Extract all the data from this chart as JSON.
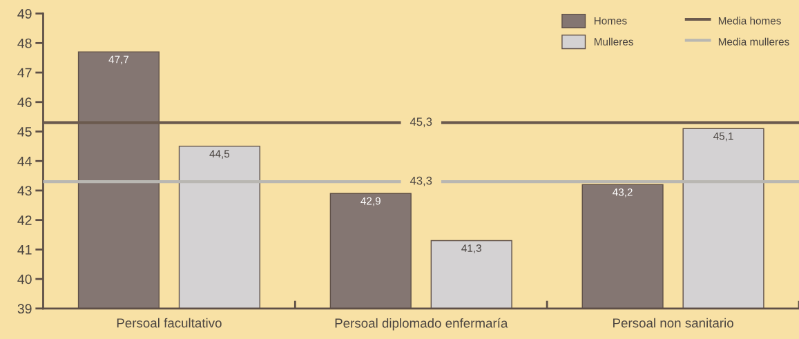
{
  "chart_data": {
    "type": "bar",
    "categories": [
      "Persoal facultativo",
      "Persoal diplomado enfermaría",
      "Persoal non sanitario"
    ],
    "series": [
      {
        "name": "Homes",
        "color": "#847672",
        "values": [
          47.7,
          42.9,
          43.2
        ],
        "value_labels": [
          "47,7",
          "42,9",
          "43,2"
        ]
      },
      {
        "name": "Mulleres",
        "color": "#d4d2d3",
        "values": [
          44.5,
          41.3,
          45.1
        ],
        "value_labels": [
          "44,5",
          "41,3",
          "45,1"
        ]
      }
    ],
    "ylim": [
      39,
      49
    ],
    "yticks": [
      39,
      40,
      41,
      42,
      43,
      44,
      45,
      46,
      47,
      48,
      49
    ],
    "ref_lines": [
      {
        "axis": "y",
        "value": 45.3,
        "label": "Media homes",
        "color": "#6b5a4e",
        "line_style": "solid"
      },
      {
        "axis": "y",
        "value": 43.3,
        "label": "Media mulleres",
        "color": "#b9b7b2",
        "line_style": "solid"
      }
    ],
    "annotations": [
      {
        "text": "45,3",
        "x": "Persoal diplomado enfermaría",
        "y": 45.3
      },
      {
        "text": "43,3",
        "x": "Persoal diplomado enfermaría",
        "y": 43.3
      }
    ],
    "grid": false,
    "legend": "top right"
  }
}
